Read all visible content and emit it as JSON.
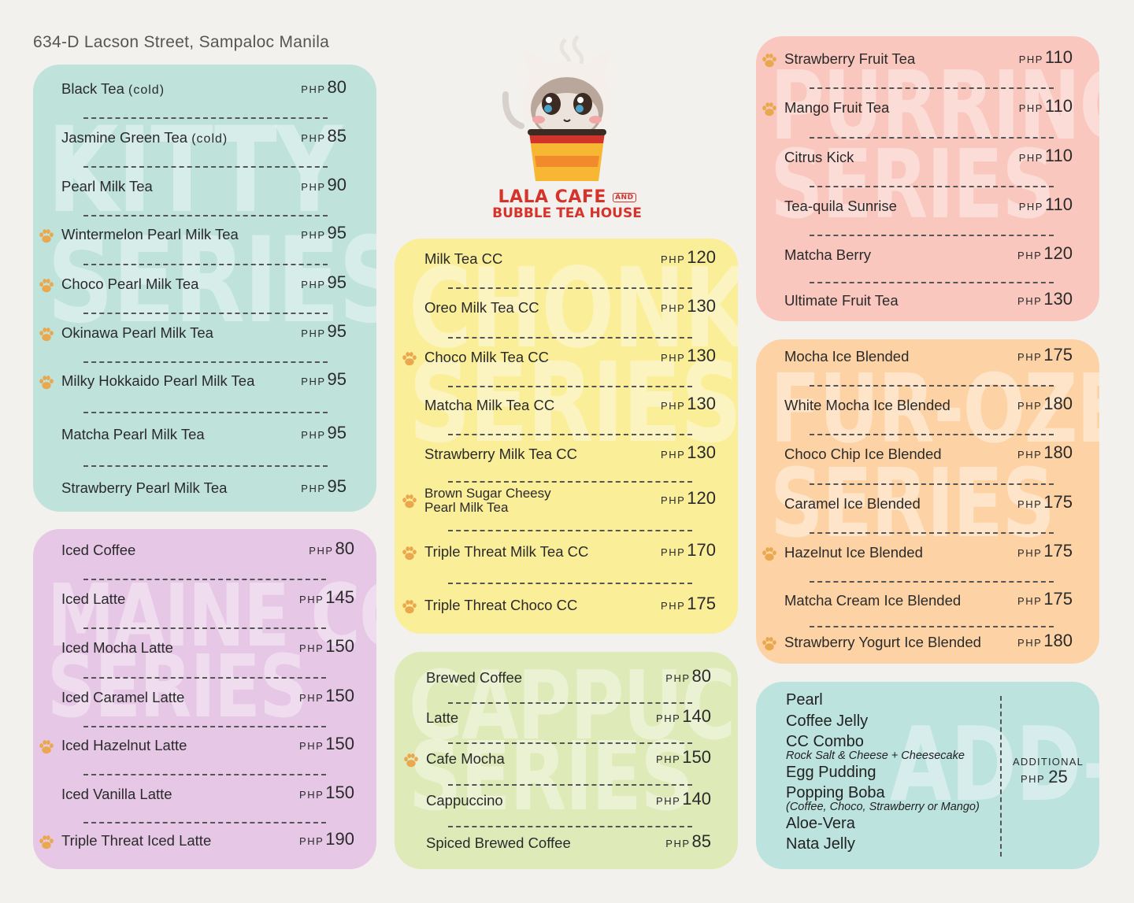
{
  "address": "634-D Lacson Street, Sampaloc Manila",
  "logo": {
    "line1": "LALA CAFE",
    "and": "AND",
    "line2": "BUBBLE TEA HOUSE"
  },
  "currency": "PHP",
  "colors": {
    "kitty": "#bfe3db",
    "maine": "#e6c7e6",
    "chonky": "#fbee99",
    "cappuccino": "#dfeab9",
    "purr": "#f9c7be",
    "furozen": "#fdd3a6",
    "addons": "#bde3df",
    "paw": "#e9a84e"
  },
  "kitty": {
    "watermark": [
      "KITTY",
      "SERIES"
    ],
    "items": [
      {
        "name": "Black Tea",
        "note": "(cold)",
        "price": "80"
      },
      {
        "name": "Jasmine Green Tea",
        "note": "(cold)",
        "price": "85"
      },
      {
        "name": "Pearl Milk Tea",
        "note": "",
        "price": "90"
      },
      {
        "name": "Wintermelon Pearl Milk Tea",
        "note": "",
        "price": "95"
      },
      {
        "name": "Choco Pearl Milk Tea",
        "note": "",
        "price": "95"
      },
      {
        "name": "Okinawa Pearl Milk Tea",
        "note": "",
        "price": "95"
      },
      {
        "name": "Milky Hokkaido Pearl Milk Tea",
        "note": "",
        "price": "95"
      },
      {
        "name": "Matcha Pearl Milk Tea",
        "note": "",
        "price": "95"
      },
      {
        "name": "Strawberry Pearl Milk Tea",
        "note": "",
        "price": "95"
      }
    ]
  },
  "maine": {
    "watermark": [
      "MAINE COOL",
      "SERIES"
    ],
    "items": [
      {
        "name": "Iced Coffee",
        "price": "80"
      },
      {
        "name": "Iced Latte",
        "price": "145"
      },
      {
        "name": "Iced Mocha Latte",
        "price": "150"
      },
      {
        "name": "Iced Caramel Latte",
        "price": "150"
      },
      {
        "name": "Iced Hazelnut Latte",
        "price": "150"
      },
      {
        "name": "Iced Vanilla Latte",
        "price": "150"
      },
      {
        "name": "Triple Threat Iced Latte",
        "price": "190"
      }
    ]
  },
  "chonky": {
    "watermark": [
      "CHONKY",
      "SERIES"
    ],
    "items": [
      {
        "name": "Milk Tea CC",
        "price": "120"
      },
      {
        "name": "Oreo Milk Tea CC",
        "price": "130"
      },
      {
        "name": "Choco Milk Tea CC",
        "price": "130"
      },
      {
        "name": "Matcha Milk Tea CC",
        "price": "130"
      },
      {
        "name": "Strawberry Milk Tea CC",
        "price": "130"
      },
      {
        "name": "Brown Sugar Cheesy",
        "name2": "Pearl Milk Tea",
        "price": "120"
      },
      {
        "name": "Triple Threat Milk Tea CC",
        "price": "170"
      },
      {
        "name": "Triple Threat Choco CC",
        "price": "175"
      }
    ]
  },
  "cappuccino": {
    "watermark": [
      "CAPPUCCINO",
      "SERIES"
    ],
    "items": [
      {
        "name": "Brewed Coffee",
        "price": "80"
      },
      {
        "name": "Latte",
        "price": "140"
      },
      {
        "name": "Cafe Mocha",
        "price": "150"
      },
      {
        "name": "Cappuccino",
        "price": "140"
      },
      {
        "name": "Spiced Brewed Coffee",
        "price": "85"
      }
    ]
  },
  "purr": {
    "watermark": [
      "PURRINCESS",
      "SERIES"
    ],
    "items": [
      {
        "name": "Strawberry Fruit Tea",
        "price": "110"
      },
      {
        "name": "Mango Fruit Tea",
        "price": "110"
      },
      {
        "name": "Citrus Kick",
        "price": "110"
      },
      {
        "name": "Tea-quila Sunrise",
        "price": "110"
      },
      {
        "name": "Matcha Berry",
        "price": "120"
      },
      {
        "name": "Ultimate Fruit Tea",
        "price": "130"
      }
    ]
  },
  "furozen": {
    "watermark": [
      "FUR-OZEN",
      "SERIES"
    ],
    "items": [
      {
        "name": "Mocha Ice Blended",
        "price": "175"
      },
      {
        "name": "White Mocha Ice Blended",
        "price": "180"
      },
      {
        "name": "Choco Chip Ice Blended",
        "price": "180"
      },
      {
        "name": "Caramel Ice Blended",
        "price": "175"
      },
      {
        "name": "Hazelnut Ice Blended",
        "price": "175"
      },
      {
        "name": "Matcha Cream Ice Blended",
        "price": "175"
      },
      {
        "name": "Strawberry Yogurt Ice Blended",
        "price": "180"
      }
    ]
  },
  "addons": {
    "watermark": "ADD-ONS",
    "items": [
      {
        "name": "Pearl",
        "sub": ""
      },
      {
        "name": "Coffee Jelly",
        "sub": ""
      },
      {
        "name": "CC Combo",
        "sub": "Rock Salt & Cheese + Cheesecake"
      },
      {
        "name": "Egg Pudding",
        "sub": ""
      },
      {
        "name": "Popping Boba",
        "sub": "(Coffee, Choco, Strawberry or Mango)"
      },
      {
        "name": "Aloe-Vera",
        "sub": ""
      },
      {
        "name": "Nata Jelly",
        "sub": ""
      }
    ],
    "additional_label": "ADDITIONAL",
    "additional_price": "25"
  }
}
